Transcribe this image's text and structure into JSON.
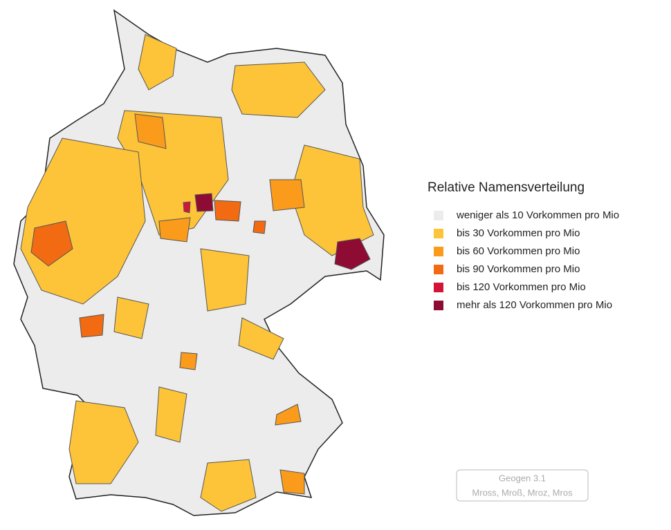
{
  "legend": {
    "title": "Relative Namensverteilung",
    "entries": [
      {
        "label": "weniger als 10 Vorkommen pro Mio",
        "color": "#ececec"
      },
      {
        "label": "bis 30 Vorkommen pro Mio",
        "color": "#fdc43a"
      },
      {
        "label": "bis 60 Vorkommen pro Mio",
        "color": "#fa9b1c"
      },
      {
        "label": "bis 90 Vorkommen pro Mio",
        "color": "#f26b12"
      },
      {
        "label": "bis 120 Vorkommen pro Mio",
        "color": "#d2143a"
      },
      {
        "label": "mehr als 120 Vorkommen pro Mio",
        "color": "#8e0b34"
      }
    ]
  },
  "watermark": {
    "title": "Geogen 3.1",
    "names": "Mross, Mroß, Mroz, Mros"
  }
}
